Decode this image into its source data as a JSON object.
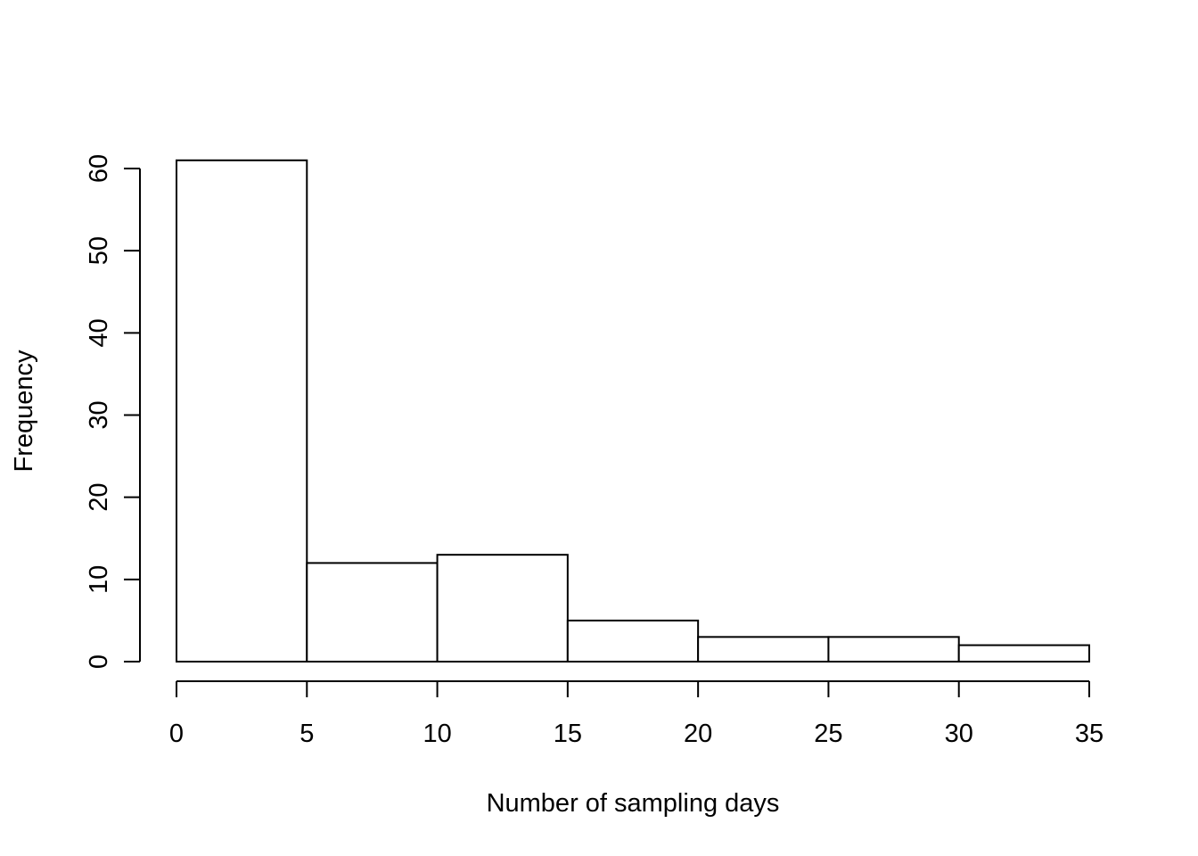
{
  "chart_data": {
    "type": "bar",
    "title": "",
    "xlabel": "Number of sampling days",
    "ylabel": "Frequency",
    "bins": [
      {
        "start": 0,
        "end": 5,
        "value": 61
      },
      {
        "start": 5,
        "end": 10,
        "value": 12
      },
      {
        "start": 10,
        "end": 15,
        "value": 13
      },
      {
        "start": 15,
        "end": 20,
        "value": 5
      },
      {
        "start": 20,
        "end": 25,
        "value": 3
      },
      {
        "start": 25,
        "end": 30,
        "value": 3
      },
      {
        "start": 30,
        "end": 35,
        "value": 2
      }
    ],
    "xlim": [
      0,
      35
    ],
    "ylim": [
      0,
      60
    ],
    "xticks": [
      "0",
      "5",
      "10",
      "15",
      "20",
      "25",
      "30",
      "35"
    ],
    "yticks": [
      "0",
      "10",
      "20",
      "30",
      "40",
      "50",
      "60"
    ],
    "grid": false,
    "legend": "none",
    "colors": {
      "bar_fill": "#ffffff",
      "bar_stroke": "#000000"
    }
  }
}
